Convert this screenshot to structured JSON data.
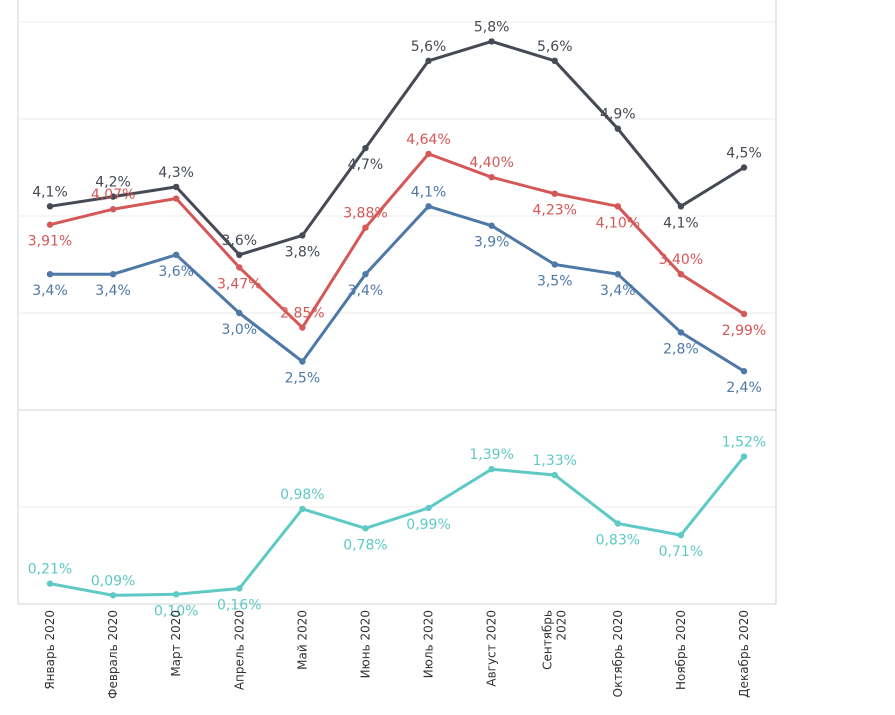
{
  "chart_data": {
    "type": "line",
    "x": [
      "Январь 2020",
      "Февраль 2020",
      "Март 2020",
      "Апрель 2020",
      "Май 2020",
      "Июнь 2020",
      "Июль 2020",
      "Август 2020",
      "Сентябрь 2020",
      "Октябрь 2020",
      "Ноябрь 2020",
      "Декабрь 2020"
    ],
    "tick_labels": [
      [
        "Январь 2020"
      ],
      [
        "Февраль 2020"
      ],
      [
        "Март 2020"
      ],
      [
        "Апрель 2020"
      ],
      [
        "Май 2020"
      ],
      [
        "Июнь 2020"
      ],
      [
        "Июль 2020"
      ],
      [
        "Август 2020"
      ],
      [
        "Сентябрь",
        "2020"
      ],
      [
        "Октябрь 2020"
      ],
      [
        "Ноябрь 2020"
      ],
      [
        "Декабрь 2020"
      ]
    ],
    "grid": true,
    "legend": "none",
    "panels": [
      {
        "ylim": [
          2.0,
          6.0
        ],
        "series": [
          {
            "color": "#464a55",
            "values": [
              4.1,
              4.2,
              4.3,
              3.6,
              3.8,
              4.7,
              5.6,
              5.8,
              5.6,
              4.9,
              4.1,
              4.5
            ],
            "labels": [
              "4,1%",
              "4,2%",
              "4,3%",
              "3,6%",
              "3,8%",
              "4,7%",
              "5,6%",
              "5,8%",
              "5,6%",
              "4,9%",
              "4,1%",
              "4,5%"
            ],
            "label_pos": [
              "above",
              "above",
              "above",
              "above",
              "below",
              "below",
              "above",
              "above",
              "above",
              "above",
              "below",
              "above"
            ]
          },
          {
            "color": "#d45857",
            "values": [
              3.91,
              4.07,
              4.18,
              3.47,
              2.85,
              3.88,
              4.64,
              4.4,
              4.23,
              4.1,
              3.4,
              2.99
            ],
            "labels": [
              "3,91%",
              "4,07%",
              "",
              "3,47%",
              "2,85%",
              "3,88%",
              "4,64%",
              "4,40%",
              "4,23%",
              "4,10%",
              "3,40%",
              "2,99%"
            ],
            "label_pos": [
              "below",
              "above",
              "above",
              "below",
              "above",
              "above",
              "above",
              "above",
              "below",
              "below",
              "above",
              "below"
            ]
          },
          {
            "color": "#4e79a7",
            "values": [
              3.4,
              3.4,
              3.6,
              3.0,
              2.5,
              3.4,
              4.1,
              3.9,
              3.5,
              3.4,
              2.8,
              2.4
            ],
            "labels": [
              "3,4%",
              "3,4%",
              "3,6%",
              "3,0%",
              "2,5%",
              "3,4%",
              "4,1%",
              "3,9%",
              "3,5%",
              "3,4%",
              "2,8%",
              "2,4%"
            ],
            "label_pos": [
              "below",
              "below",
              "below",
              "below",
              "below",
              "below",
              "above",
              "below",
              "below",
              "below",
              "below",
              "below"
            ]
          }
        ]
      },
      {
        "ylim": [
          0.0,
          2.0
        ],
        "series": [
          {
            "color": "#5fc9c6",
            "values": [
              0.21,
              0.09,
              0.1,
              0.16,
              0.98,
              0.78,
              0.99,
              1.39,
              1.33,
              0.83,
              0.71,
              1.52
            ],
            "labels": [
              "0,21%",
              "0,09%",
              "0,10%",
              "0,16%",
              "0,98%",
              "0,78%",
              "0,99%",
              "1,39%",
              "1,33%",
              "0,83%",
              "0,71%",
              "1,52%"
            ],
            "label_pos": [
              "above",
              "above",
              "below",
              "below",
              "above",
              "below",
              "below",
              "above",
              "above",
              "below",
              "below",
              "above"
            ]
          }
        ]
      }
    ]
  }
}
